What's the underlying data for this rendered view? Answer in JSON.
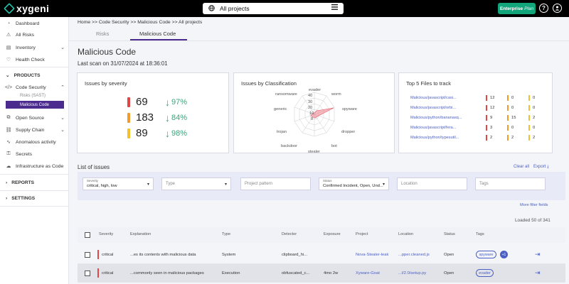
{
  "app": {
    "logo_text": "xygeni",
    "project_selector": "All projects",
    "plan_button": "Enterprise",
    "plan_name": "Plan",
    "help_icon": "?",
    "user_icon": "user-icon"
  },
  "sidebar": {
    "items": [
      {
        "label": "Dashboard",
        "icon": "dashboard-icon"
      },
      {
        "label": "All Risks",
        "icon": "risks-icon"
      },
      {
        "label": "Inventory",
        "icon": "inventory-icon"
      },
      {
        "label": "Health Check",
        "icon": "health-icon"
      }
    ],
    "products_label": "PRODUCTS",
    "code_security": "Code Security",
    "risks_sast": "Risks (SAST)",
    "malicious_code": "Malicious Code",
    "open_source": "Open Source",
    "supply_chain": "Supply Chain",
    "anomalous": "Anomalous activity",
    "secrets": "Secrets",
    "iac": "Infrastructure as Code",
    "reports": "REPORTS",
    "settings": "SETTINGS"
  },
  "header": {
    "breadcrumb": "Home >> Code Security >> Malicious Code >> All projects",
    "tabs": [
      "Risks",
      "Malicious Code"
    ],
    "title": "Malicious Code",
    "last_scan": "Last scan on 31/07/2024 at 18:36:01"
  },
  "severity_card": {
    "title": "Issues by severity",
    "rows": [
      {
        "count": "69",
        "pct": "97%",
        "color": "#e04848"
      },
      {
        "count": "183",
        "pct": "84%",
        "color": "#f39a2c"
      },
      {
        "count": "89",
        "pct": "98%",
        "color": "#f2c12e"
      }
    ]
  },
  "classification_card": {
    "title": "Issues by Classification",
    "labels": [
      "evader",
      "worm",
      "spyware",
      "dropper",
      "bot",
      "stealer",
      "backdoor",
      "trojan",
      "generic",
      "ransomware"
    ],
    "ticks": [
      "40",
      "30",
      "20",
      "10",
      "0"
    ]
  },
  "top5_card": {
    "title": "Top 5 Files to track",
    "rows": [
      {
        "file": "Malicious/javascript/casi...",
        "c": "12",
        "h": "0",
        "m": "0"
      },
      {
        "file": "Malicious/javascript/orbi...",
        "c": "12",
        "h": "0",
        "m": "0"
      },
      {
        "file": "Malicious/python/bananasq...",
        "c": "9",
        "h": "15",
        "m": "2"
      },
      {
        "file": "Malicious/javascript/fera...",
        "c": "3",
        "h": "0",
        "m": "0"
      },
      {
        "file": "Malicious/python/typesutil...",
        "c": "2",
        "h": "2",
        "m": "2"
      }
    ]
  },
  "issues": {
    "title": "List of issues",
    "clear_all": "Clear all",
    "export": "Export",
    "more_filters": "More filter fields",
    "loaded": "Loaded 50 of 341",
    "filters": {
      "severity_label": "Severity",
      "severity_value": "critical, high, low",
      "type": "Type",
      "project": "Project pattern",
      "status_label": "Status",
      "status_value": "Confirmed Incident, Open, Und...",
      "location": "Location",
      "tags": "Tags"
    },
    "columns": [
      "Severity",
      "Explanation",
      "Type",
      "Detector",
      "Exposure",
      "Project",
      "Location",
      "Status",
      "Tags"
    ],
    "rows": [
      {
        "severity": "critical",
        "explanation": "...es its contents with malicious data",
        "type": "System",
        "detector": "clipboard_hi...",
        "exposure": "",
        "project": "Nova-Stealer-leak",
        "location": "...pper.cleaned.js",
        "status": "Open",
        "tag": "spyware",
        "more": "+1"
      },
      {
        "severity": "critical",
        "explanation": "...commonly seen in malicious packages",
        "type": "Execution",
        "detector": "obfuscated_c...",
        "exposure": "4mo 2w",
        "project": "Xyware-Goat",
        "location": "...l/2.0/setup.py",
        "status": "Open",
        "tag": "evader",
        "more": ""
      }
    ]
  }
}
